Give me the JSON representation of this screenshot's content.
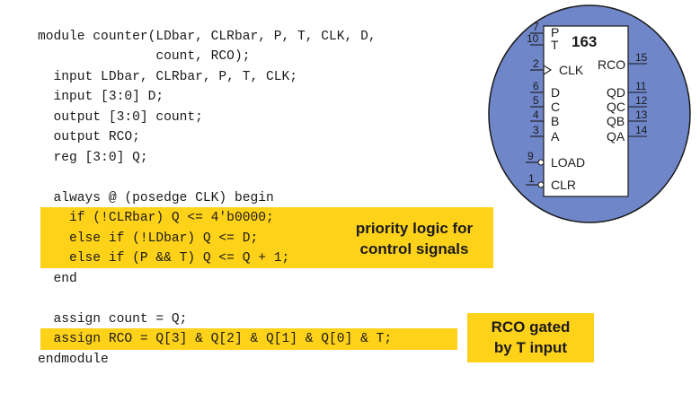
{
  "code": {
    "lines": [
      "module counter(LDbar, CLRbar, P, T, CLK, D,",
      "               count, RCO);",
      "  input LDbar, CLRbar, P, T, CLK;",
      "  input [3:0] D;",
      "  output [3:0] count;",
      "  output RCO;",
      "  reg [3:0] Q;",
      "",
      "  always @ (posedge CLK) begin",
      "    if (!CLRbar) Q <= 4'b0000;",
      "    else if (!LDbar) Q <= D;",
      "    else if (P && T) Q <= Q + 1;",
      "  end",
      "",
      "  assign count = Q;",
      "  assign RCO = Q[3] & Q[2] & Q[1] & Q[0] & T;",
      "endmodule"
    ]
  },
  "callouts": {
    "priority": [
      "priority logic for",
      "control signals"
    ],
    "rco": [
      "RCO gated",
      "by T input"
    ]
  },
  "chip": {
    "title": "163",
    "left_pins": [
      {
        "num": "7",
        "label": "P"
      },
      {
        "num": "10",
        "label": "T"
      },
      {
        "num": "2",
        "label": "CLK"
      },
      {
        "num": "6",
        "label": "D"
      },
      {
        "num": "5",
        "label": "C"
      },
      {
        "num": "4",
        "label": "B"
      },
      {
        "num": "3",
        "label": "A"
      },
      {
        "num": "9",
        "label": "LOAD"
      },
      {
        "num": "1",
        "label": "CLR"
      }
    ],
    "right_pins": [
      {
        "num": "15",
        "label": "RCO"
      },
      {
        "num": "11",
        "label": "QD"
      },
      {
        "num": "12",
        "label": "QC"
      },
      {
        "num": "13",
        "label": "QB"
      },
      {
        "num": "14",
        "label": "QA"
      }
    ]
  },
  "colors": {
    "highlight": "#ffd21a",
    "ellipse_fill": "#6f86c9",
    "ellipse_stroke": "#1a1a1a"
  }
}
